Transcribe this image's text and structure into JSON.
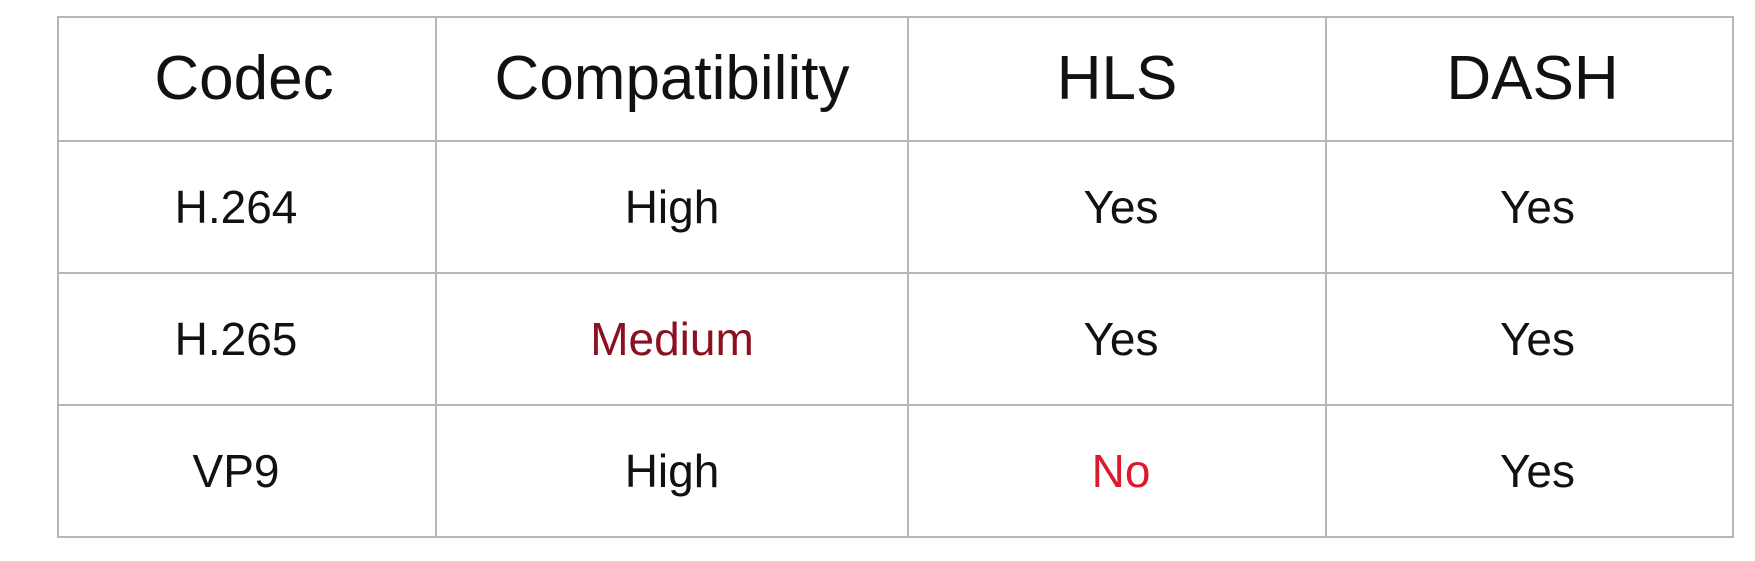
{
  "table": {
    "headers": [
      "Codec",
      "Compatibility",
      "HLS",
      "DASH"
    ],
    "rows": [
      {
        "codec": "H.264",
        "compatibility": "High",
        "hls": "Yes",
        "dash": "Yes"
      },
      {
        "codec": "H.265",
        "compatibility": "Medium",
        "hls": "Yes",
        "dash": "Yes"
      },
      {
        "codec": "VP9",
        "compatibility": "High",
        "hls": "No",
        "dash": "Yes"
      }
    ]
  },
  "colors": {
    "text": "#111111",
    "border": "#b7b7b7",
    "medium_highlight": "#8b1020",
    "no_highlight": "#dc1a2e"
  }
}
